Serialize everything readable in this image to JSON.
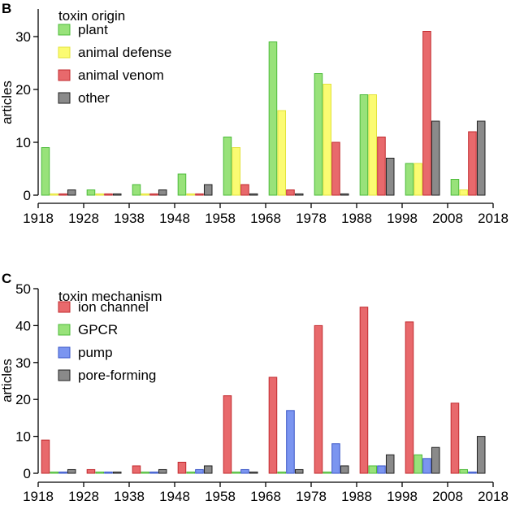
{
  "chart_data": [
    {
      "panel": "B",
      "type": "bar",
      "ylabel": "articles",
      "xlabel": "",
      "ylim": [
        0,
        35
      ],
      "yticks": [
        0,
        10,
        20,
        30
      ],
      "xlim": [
        1918,
        2018
      ],
      "xticks": [
        1918,
        1928,
        1938,
        1948,
        1958,
        1968,
        1978,
        1988,
        1998,
        2008,
        2018
      ],
      "legend_title": "toxin origin",
      "legend_position": "top-left",
      "bins": [
        1918,
        1928,
        1938,
        1948,
        1958,
        1968,
        1978,
        1988,
        1998,
        2008
      ],
      "series": [
        {
          "name": "plant",
          "fill": "#98e27a",
          "stroke": "#4cbb3a",
          "values": [
            9,
            1,
            2,
            4,
            11,
            29,
            23,
            19,
            6,
            3
          ]
        },
        {
          "name": "animal defense",
          "fill": "#fbfb72",
          "stroke": "#e3e33a",
          "values": [
            0,
            0,
            0,
            0,
            9,
            16,
            21,
            19,
            6,
            1
          ]
        },
        {
          "name": "animal venom",
          "fill": "#e8696c",
          "stroke": "#c22a2e",
          "values": [
            0,
            0,
            0,
            0,
            2,
            1,
            10,
            11,
            31,
            12
          ]
        },
        {
          "name": "other",
          "fill": "#8a8a8a",
          "stroke": "#222222",
          "values": [
            1,
            0,
            1,
            2,
            0,
            0,
            0,
            7,
            14,
            14
          ]
        }
      ]
    },
    {
      "panel": "C",
      "type": "bar",
      "ylabel": "articles",
      "xlabel": "",
      "ylim": [
        0,
        50
      ],
      "yticks": [
        0,
        10,
        20,
        30,
        40,
        50
      ],
      "xlim": [
        1918,
        2018
      ],
      "xticks": [
        1918,
        1928,
        1938,
        1948,
        1958,
        1968,
        1978,
        1988,
        1998,
        2008,
        2018
      ],
      "legend_title": "toxin mechanism",
      "legend_position": "top-left",
      "bins": [
        1918,
        1928,
        1938,
        1948,
        1958,
        1968,
        1978,
        1988,
        1998,
        2008
      ],
      "series": [
        {
          "name": "ion channel",
          "fill": "#e8696c",
          "stroke": "#c22a2e",
          "values": [
            9,
            1,
            2,
            3,
            21,
            26,
            40,
            45,
            41,
            19
          ]
        },
        {
          "name": "GPCR",
          "fill": "#98e27a",
          "stroke": "#4cbb3a",
          "values": [
            0,
            0,
            0,
            0,
            0,
            0,
            0,
            2,
            5,
            1
          ]
        },
        {
          "name": "pump",
          "fill": "#7b95f0",
          "stroke": "#3a56c8",
          "values": [
            0,
            0,
            0,
            1,
            1,
            17,
            8,
            2,
            4,
            0
          ]
        },
        {
          "name": "pore-forming",
          "fill": "#8a8a8a",
          "stroke": "#222222",
          "values": [
            1,
            0,
            1,
            2,
            0,
            1,
            2,
            5,
            7,
            10
          ]
        }
      ]
    }
  ]
}
